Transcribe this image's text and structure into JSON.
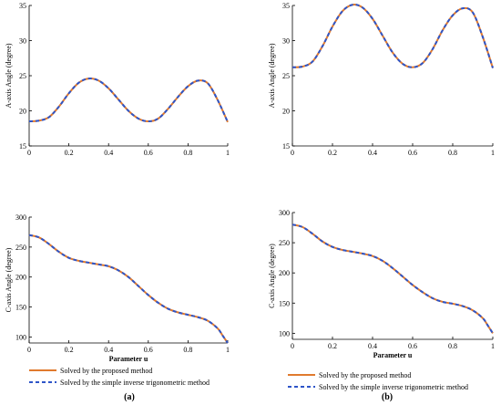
{
  "colors": {
    "proposed": "#E07A2E",
    "inverse": "#2E55C8",
    "axis": "#000000"
  },
  "legend": {
    "proposed": "Solved by the proposed method",
    "inverse": "Solved by the simple inverse trigonometric method"
  },
  "panels": {
    "a": "(a)",
    "b": "(b)"
  },
  "chart_data": [
    {
      "id": "a-top",
      "type": "line",
      "ylabel": "A-axis Angle (degree)",
      "xlabel": "",
      "xlim": [
        0,
        1
      ],
      "ylim": [
        15,
        35
      ],
      "xticks": [
        "0",
        "0.2",
        "0.4",
        "0.6",
        "0.8",
        "1"
      ],
      "yticks": [
        "15",
        "20",
        "25",
        "30",
        "35"
      ],
      "x": [
        0,
        0.05,
        0.1,
        0.15,
        0.2,
        0.25,
        0.3,
        0.35,
        0.4,
        0.45,
        0.5,
        0.55,
        0.6,
        0.65,
        0.7,
        0.75,
        0.8,
        0.85,
        0.9,
        0.95,
        1
      ],
      "series": [
        {
          "key": "proposed",
          "values": [
            18.5,
            18.6,
            19.1,
            20.6,
            22.5,
            24.0,
            24.6,
            24.3,
            23.2,
            21.6,
            20.0,
            18.9,
            18.5,
            18.9,
            20.3,
            22.0,
            23.5,
            24.3,
            23.9,
            21.5,
            18.4
          ]
        },
        {
          "key": "inverse",
          "values": [
            18.5,
            18.6,
            19.1,
            20.6,
            22.5,
            24.0,
            24.6,
            24.3,
            23.2,
            21.6,
            20.0,
            18.9,
            18.5,
            18.9,
            20.3,
            22.0,
            23.5,
            24.3,
            23.9,
            21.5,
            18.4
          ]
        }
      ]
    },
    {
      "id": "b-top",
      "type": "line",
      "ylabel": "A-axis Angle (degree)",
      "xlabel": "",
      "xlim": [
        0,
        1
      ],
      "ylim": [
        15,
        35
      ],
      "xticks": [
        "0",
        "0.2",
        "0.4",
        "0.6",
        "0.8",
        "1"
      ],
      "yticks": [
        "15",
        "20",
        "25",
        "30",
        "35"
      ],
      "x": [
        0,
        0.05,
        0.1,
        0.15,
        0.2,
        0.25,
        0.3,
        0.35,
        0.4,
        0.45,
        0.5,
        0.55,
        0.6,
        0.65,
        0.7,
        0.75,
        0.8,
        0.85,
        0.9,
        0.95,
        1
      ],
      "series": [
        {
          "key": "proposed",
          "values": [
            26.2,
            26.3,
            27.0,
            29.2,
            32.0,
            34.2,
            35.1,
            34.7,
            33.1,
            30.7,
            28.3,
            26.7,
            26.2,
            26.8,
            28.8,
            31.5,
            33.6,
            34.6,
            34.0,
            30.5,
            26.1
          ]
        },
        {
          "key": "inverse",
          "values": [
            26.2,
            26.3,
            27.0,
            29.2,
            32.0,
            34.2,
            35.1,
            34.7,
            33.1,
            30.7,
            28.3,
            26.7,
            26.2,
            26.8,
            28.8,
            31.5,
            33.6,
            34.6,
            34.0,
            30.5,
            26.1
          ]
        }
      ]
    },
    {
      "id": "a-bottom",
      "type": "line",
      "ylabel": "C-axis Angle (degree)",
      "xlabel": "Parameter u",
      "xlim": [
        0,
        1
      ],
      "ylim": [
        90,
        300
      ],
      "xticks": [
        "0",
        "0.2",
        "0.4",
        "0.6",
        "0.8",
        "1"
      ],
      "yticks": [
        "100",
        "150",
        "200",
        "250",
        "300"
      ],
      "x": [
        0,
        0.05,
        0.1,
        0.15,
        0.2,
        0.25,
        0.3,
        0.35,
        0.4,
        0.45,
        0.5,
        0.55,
        0.6,
        0.65,
        0.7,
        0.75,
        0.8,
        0.85,
        0.9,
        0.95,
        0.975,
        1
      ],
      "series": [
        {
          "key": "proposed",
          "values": [
            270,
            266,
            255,
            242,
            232,
            227,
            224,
            221,
            218,
            211,
            200,
            185,
            170,
            157,
            147,
            141,
            137,
            133,
            127,
            114,
            102,
            90
          ]
        },
        {
          "key": "inverse",
          "values": [
            270,
            266,
            255,
            242,
            232,
            227,
            224,
            221,
            218,
            211,
            200,
            185,
            170,
            157,
            147,
            141,
            137,
            133,
            127,
            114,
            102,
            90
          ]
        }
      ]
    },
    {
      "id": "b-bottom",
      "type": "line",
      "ylabel": "C-axis Angle (degree)",
      "xlabel": "Parameter u",
      "xlim": [
        0,
        1
      ],
      "ylim": [
        90,
        300
      ],
      "xticks": [
        "0",
        "0.2",
        "0.4",
        "0.6",
        "0.8",
        "1"
      ],
      "yticks": [
        "100",
        "150",
        "200",
        "250",
        "300"
      ],
      "x": [
        0,
        0.05,
        0.1,
        0.15,
        0.2,
        0.25,
        0.3,
        0.35,
        0.4,
        0.45,
        0.5,
        0.55,
        0.6,
        0.65,
        0.7,
        0.75,
        0.8,
        0.85,
        0.9,
        0.95,
        0.975,
        1
      ],
      "series": [
        {
          "key": "proposed",
          "values": [
            280,
            276,
            265,
            252,
            243,
            238,
            235,
            232,
            228,
            220,
            208,
            194,
            180,
            168,
            158,
            152,
            149,
            145,
            138,
            125,
            113,
            100
          ]
        },
        {
          "key": "inverse",
          "values": [
            280,
            276,
            265,
            252,
            243,
            238,
            235,
            232,
            228,
            220,
            208,
            194,
            180,
            168,
            158,
            152,
            149,
            145,
            138,
            125,
            113,
            100
          ]
        }
      ]
    }
  ]
}
